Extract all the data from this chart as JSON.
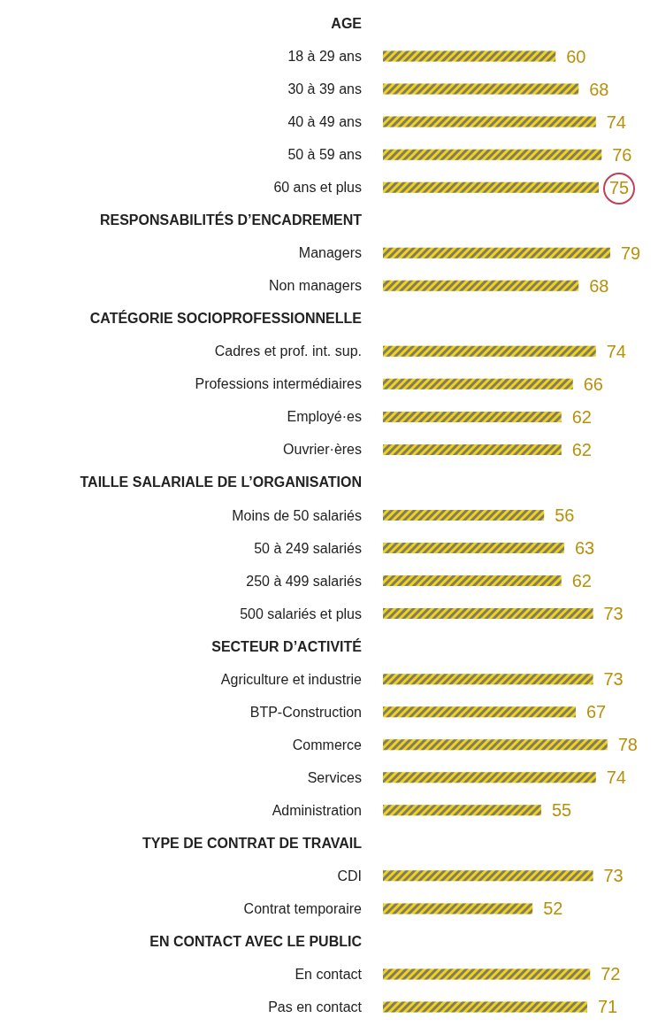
{
  "chart_data": {
    "type": "bar",
    "orientation": "horizontal",
    "data_labels": true,
    "categories": [
      "AGE",
      "18 à 29 ans",
      "30 à 39 ans",
      "40 à 49 ans",
      "50 à 59 ans",
      "60 ans et plus",
      "RESPONSABILITÉS D’ENCADREMENT",
      "Managers",
      "Non managers",
      "CATÉGORIE SOCIOPROFESSIONNELLE",
      "Cadres et prof. int. sup.",
      "Professions intermédiaires",
      "Employé·es",
      "Ouvrier·ères",
      "TAILLE SALARIALE DE L’ORGANISATION",
      "Moins de 50 salariés",
      "50 à 249 salariés",
      "250 à 499 salariés",
      "500 salariés et plus",
      "SECTEUR D’ACTIVITÉ",
      "Agriculture et industrie",
      "BTP-Construction",
      "Commerce",
      "Services",
      "Administration",
      "TYPE DE CONTRAT DE TRAVAIL",
      "CDI",
      "Contrat temporaire",
      "EN CONTACT AVEC LE PUBLIC",
      "En contact",
      "Pas en contact"
    ],
    "series": [
      {
        "color": "#f0d21c",
        "values": [
          null,
          60,
          68,
          74,
          76,
          75,
          null,
          79,
          68,
          null,
          74,
          66,
          62,
          62,
          null,
          56,
          63,
          62,
          73,
          null,
          73,
          67,
          78,
          74,
          55,
          null,
          73,
          52,
          null,
          72,
          71
        ]
      }
    ]
  }
}
